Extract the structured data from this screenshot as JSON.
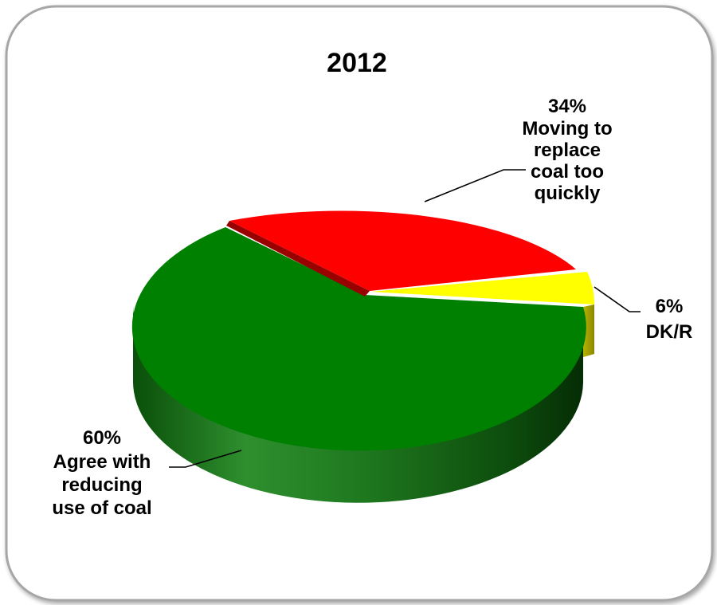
{
  "chart_data": {
    "type": "pie",
    "title": "2012",
    "style": "3d-exploded",
    "slices": [
      {
        "label": "Agree with reducing use of coal",
        "value": 60,
        "value_label": "60%",
        "color": "#008000"
      },
      {
        "label": "Moving to replace coal too quickly",
        "value": 34,
        "value_label": "34%",
        "color": "#ff0000"
      },
      {
        "label": "DK/R",
        "value": 6,
        "value_label": "6%",
        "color": "#ffff00"
      }
    ],
    "legend": "none"
  }
}
